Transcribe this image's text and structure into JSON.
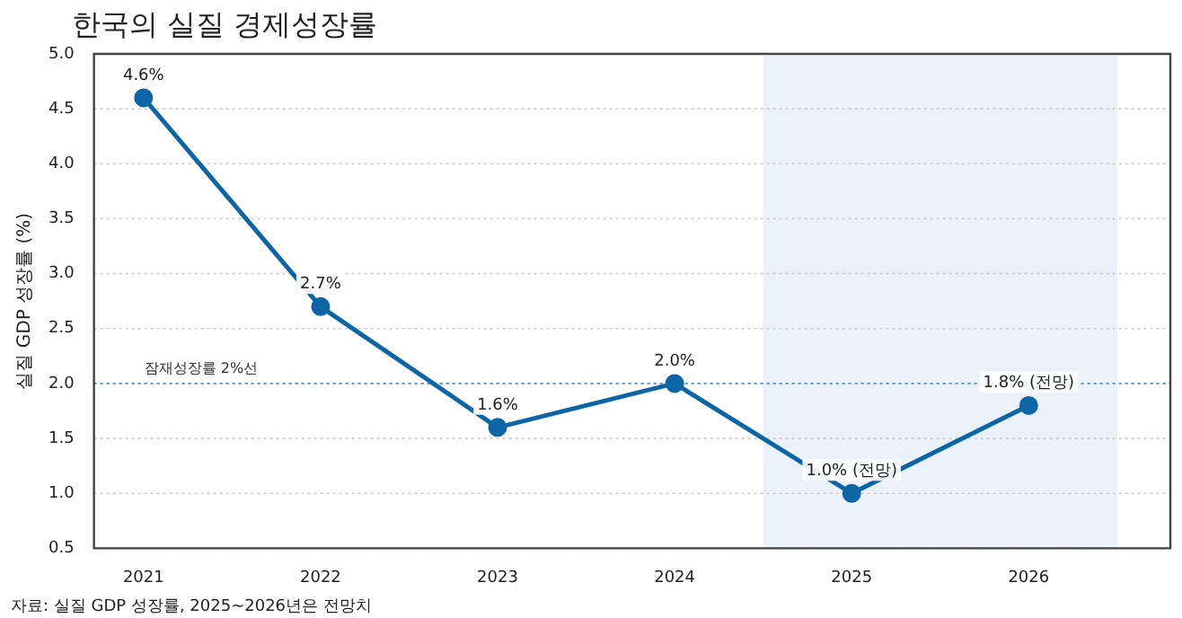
{
  "chart_data": {
    "type": "line",
    "title": "한국의 실질 경제성장률",
    "ylabel": "실질 GDP 성장률 (%)",
    "x": [
      2021,
      2022,
      2023,
      2024,
      2025,
      2026
    ],
    "series": [
      {
        "color": "#0e65a5",
        "values": [
          4.6,
          2.7,
          1.6,
          2.0,
          1.0,
          1.8
        ],
        "value_labels": [
          "4.6%",
          "2.7%",
          "1.6%",
          "2.0%",
          "1.0% (전망)",
          "1.8% (전망)"
        ]
      }
    ],
    "xlim": [
      2020.72,
      2026.8
    ],
    "xticks": [
      2021,
      2022,
      2023,
      2024,
      2025,
      2026
    ],
    "ylim": [
      0.5,
      5
    ],
    "yticks": [
      {
        "value": 0.5,
        "label": "0.5"
      },
      {
        "value": 1,
        "label": "1.0"
      },
      {
        "value": 1.5,
        "label": "1.5"
      },
      {
        "value": 2,
        "label": "2.0"
      },
      {
        "value": 2.5,
        "label": "2.5"
      },
      {
        "value": 3,
        "label": "3.0"
      },
      {
        "value": 3.5,
        "label": "3.5"
      },
      {
        "value": 4,
        "label": "4.0"
      },
      {
        "value": 4.5,
        "label": "4.5"
      },
      {
        "value": 5,
        "label": "5.0"
      }
    ],
    "ref_lines": [
      {
        "axis": "y",
        "value": 2,
        "label": "잠재성장률 2%선",
        "color": "#5b9bd5",
        "line_style": "dotted"
      }
    ],
    "bands": [
      {
        "axis": "x",
        "from": 2024.5,
        "to": 2026.5,
        "color": "#eaf1f8"
      }
    ],
    "annotations": [
      "자료: 실질 GDP 성장률, 2025~2026년은 전망치"
    ],
    "grid": "y",
    "marker": "circle",
    "line_style": "solid"
  }
}
